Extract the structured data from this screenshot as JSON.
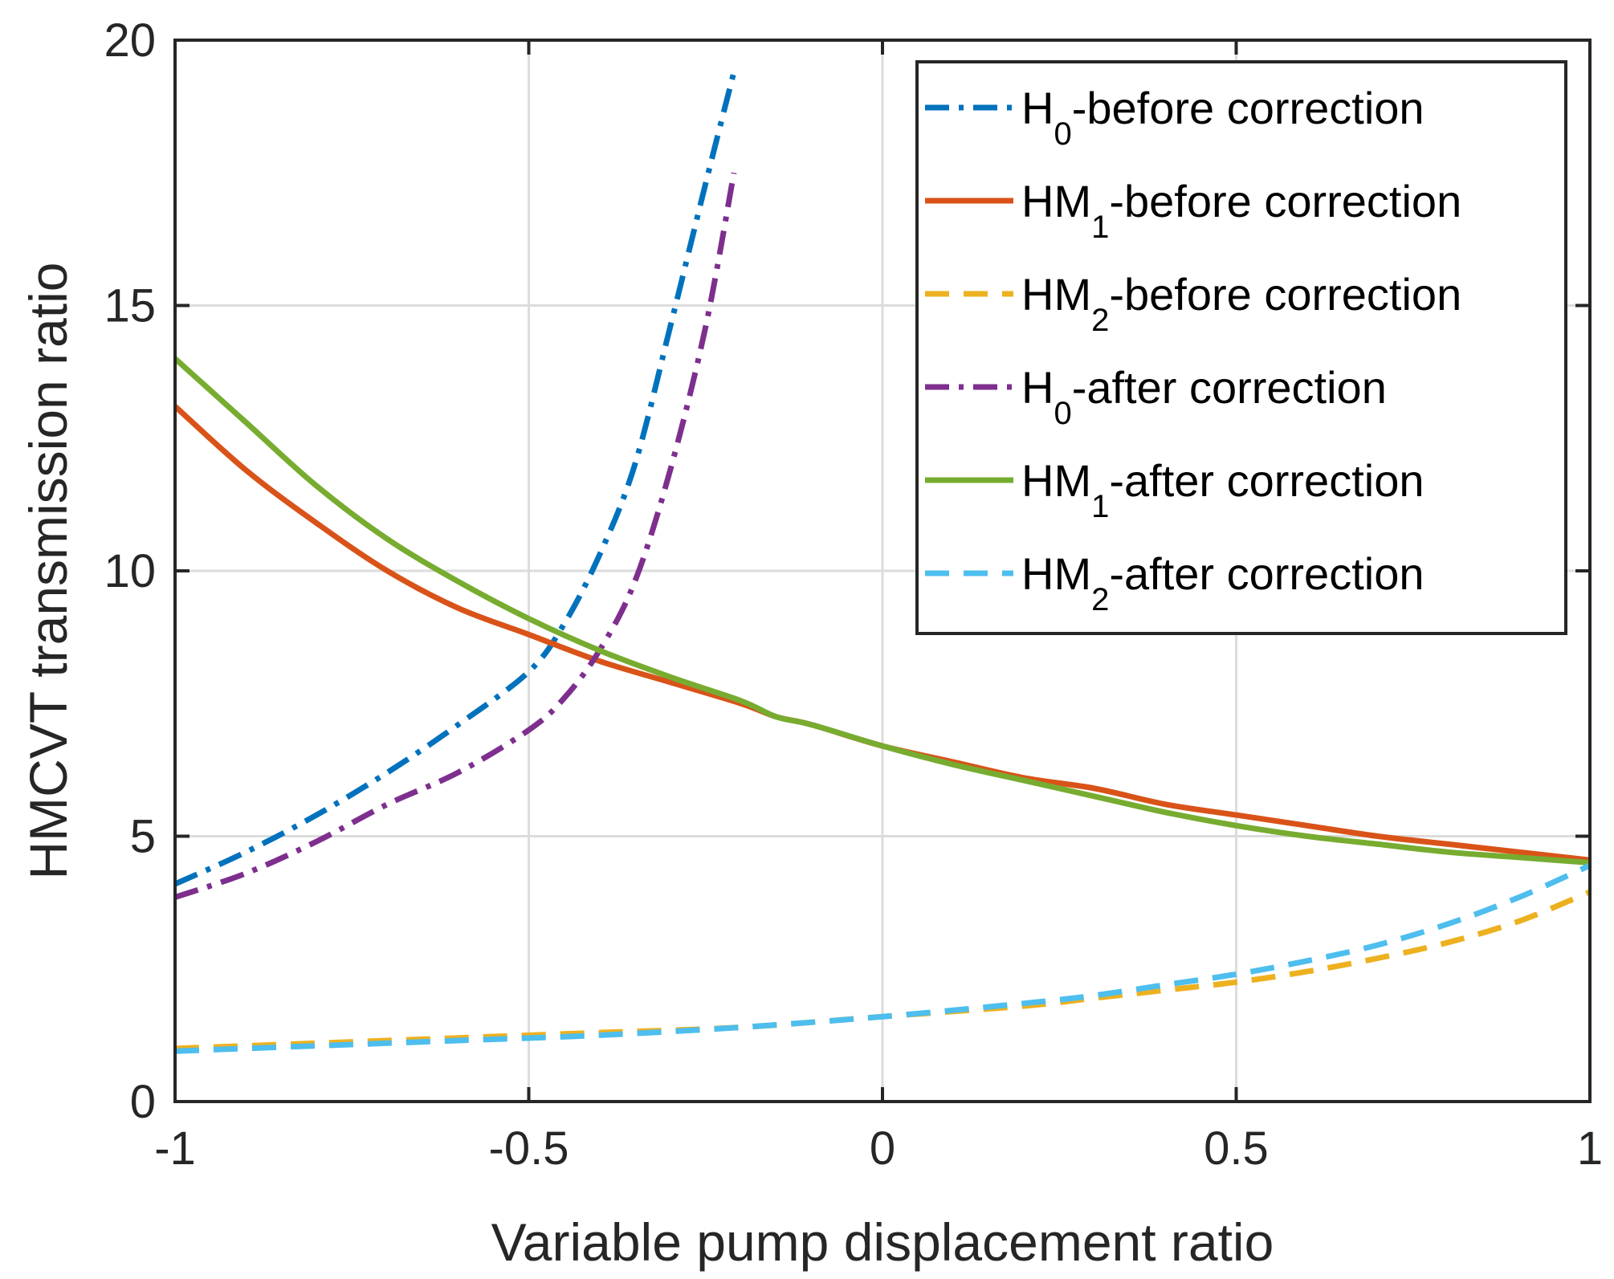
{
  "chart_data": {
    "type": "line",
    "title": "",
    "xlabel": "Variable pump displacement ratio",
    "ylabel": "HMCVT transmission ratio",
    "xlim": [
      -1,
      1
    ],
    "ylim": [
      0,
      20
    ],
    "xticks": [
      -1,
      -0.5,
      0,
      0.5,
      1
    ],
    "xtick_labels": [
      "-1",
      "-0.5",
      "0",
      "0.5",
      "1"
    ],
    "yticks": [
      0,
      5,
      10,
      15,
      20
    ],
    "ytick_labels": [
      "0",
      "5",
      "10",
      "15",
      "20"
    ],
    "grid": true,
    "legend_position": "top-right",
    "series": [
      {
        "name": "H0-before correction",
        "legend_parts": [
          "H",
          "0",
          "-before correction"
        ],
        "color": "#0072BD",
        "dash": "dashdot",
        "x": [
          -1,
          -0.9,
          -0.8,
          -0.7,
          -0.6,
          -0.5,
          -0.45,
          -0.4,
          -0.35,
          -0.3,
          -0.25,
          -0.21
        ],
        "y": [
          4.1,
          4.7,
          5.4,
          6.2,
          7.1,
          8.1,
          9.0,
          10.3,
          12.0,
          14.6,
          17.3,
          19.4
        ]
      },
      {
        "name": "HM1-before correction",
        "legend_parts": [
          "HM",
          "1",
          "-before correction"
        ],
        "color": "#D95319",
        "dash": "solid",
        "x": [
          -1,
          -0.9,
          -0.8,
          -0.7,
          -0.6,
          -0.5,
          -0.4,
          -0.3,
          -0.2,
          -0.15,
          -0.1,
          0,
          0.1,
          0.2,
          0.3,
          0.4,
          0.5,
          0.6,
          0.7,
          0.8,
          0.9,
          1.0
        ],
        "y": [
          13.1,
          11.9,
          10.9,
          10.0,
          9.3,
          8.8,
          8.3,
          7.9,
          7.5,
          7.25,
          7.1,
          6.7,
          6.4,
          6.1,
          5.9,
          5.6,
          5.4,
          5.2,
          5.0,
          4.85,
          4.7,
          4.55
        ]
      },
      {
        "name": "HM2-before correction",
        "legend_parts": [
          "HM",
          "2",
          "-before correction"
        ],
        "color": "#EDB120",
        "dash": "dashed",
        "x": [
          -1,
          -0.8,
          -0.6,
          -0.4,
          -0.2,
          0,
          0.2,
          0.3,
          0.4,
          0.5,
          0.6,
          0.7,
          0.8,
          0.9,
          1.0
        ],
        "y": [
          1.0,
          1.1,
          1.2,
          1.3,
          1.4,
          1.6,
          1.8,
          1.95,
          2.1,
          2.25,
          2.45,
          2.7,
          3.0,
          3.4,
          3.95
        ]
      },
      {
        "name": "H0-after correction",
        "legend_parts": [
          "H",
          "0",
          "-after correction"
        ],
        "color": "#7E2F8E",
        "dash": "dashdot",
        "x": [
          -1,
          -0.9,
          -0.8,
          -0.7,
          -0.6,
          -0.5,
          -0.45,
          -0.4,
          -0.35,
          -0.3,
          -0.25,
          -0.21
        ],
        "y": [
          3.85,
          4.3,
          4.9,
          5.6,
          6.2,
          7.0,
          7.6,
          8.5,
          9.8,
          11.9,
          14.6,
          17.5
        ]
      },
      {
        "name": "HM1-after correction",
        "legend_parts": [
          "HM",
          "1",
          "-after correction"
        ],
        "color": "#77AC30",
        "dash": "solid",
        "x": [
          -1,
          -0.9,
          -0.8,
          -0.7,
          -0.6,
          -0.5,
          -0.4,
          -0.3,
          -0.2,
          -0.15,
          -0.1,
          0,
          0.1,
          0.2,
          0.3,
          0.4,
          0.5,
          0.6,
          0.7,
          0.8,
          0.9,
          1.0
        ],
        "y": [
          14.0,
          12.8,
          11.6,
          10.6,
          9.8,
          9.1,
          8.5,
          8.0,
          7.55,
          7.25,
          7.1,
          6.7,
          6.35,
          6.05,
          5.75,
          5.45,
          5.2,
          5.0,
          4.85,
          4.7,
          4.6,
          4.5
        ]
      },
      {
        "name": "HM2-after correction",
        "legend_parts": [
          "HM",
          "2",
          "-after correction"
        ],
        "color": "#4DBEEE",
        "dash": "dashed",
        "x": [
          -1,
          -0.8,
          -0.6,
          -0.4,
          -0.2,
          0,
          0.2,
          0.3,
          0.4,
          0.5,
          0.6,
          0.7,
          0.8,
          0.9,
          1.0
        ],
        "y": [
          0.95,
          1.05,
          1.15,
          1.25,
          1.4,
          1.6,
          1.85,
          2.0,
          2.2,
          2.4,
          2.65,
          2.95,
          3.35,
          3.85,
          4.45
        ]
      }
    ]
  }
}
